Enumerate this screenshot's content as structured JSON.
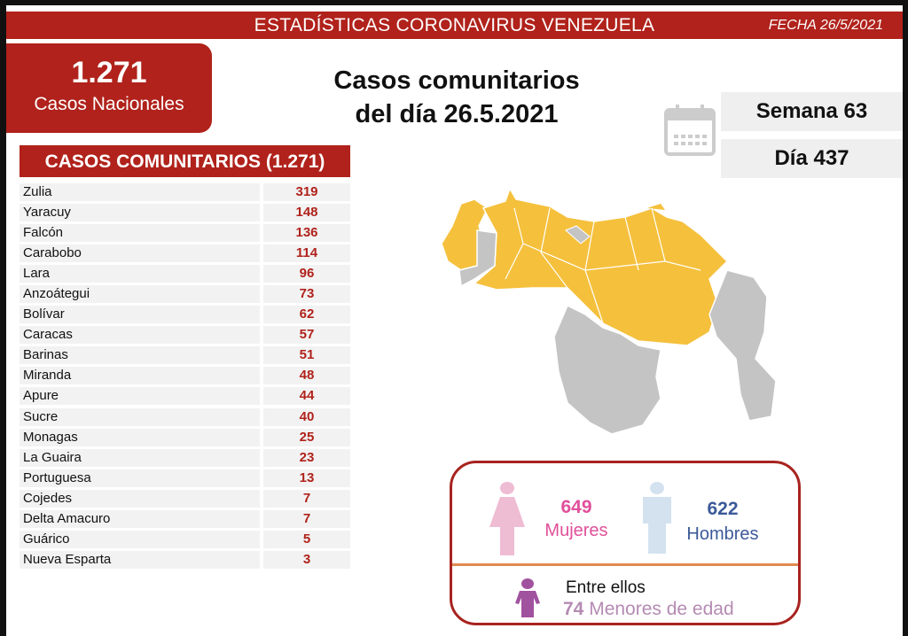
{
  "header": {
    "title": "ESTADÍSTICAS CORONAVIRUS VENEZUELA",
    "date": "FECHA 26/5/2021"
  },
  "national": {
    "count": "1.271",
    "label": "Casos Nacionales"
  },
  "main_title": {
    "line1": "Casos comunitarios",
    "line2": "del día 26.5.2021"
  },
  "week": "Semana 63",
  "day": "Día 437",
  "table": {
    "header": "CASOS COMUNITARIOS (1.271)",
    "rows": [
      {
        "state": "Zulia",
        "cases": "319"
      },
      {
        "state": "Yaracuy",
        "cases": "148"
      },
      {
        "state": "Falcón",
        "cases": "136"
      },
      {
        "state": "Carabobo",
        "cases": "114"
      },
      {
        "state": "Lara",
        "cases": "96"
      },
      {
        "state": "Anzoátegui",
        "cases": "73"
      },
      {
        "state": "Bolívar",
        "cases": "62"
      },
      {
        "state": "Caracas",
        "cases": "57"
      },
      {
        "state": "Barinas",
        "cases": "51"
      },
      {
        "state": "Miranda",
        "cases": "48"
      },
      {
        "state": "Apure",
        "cases": "44"
      },
      {
        "state": "Sucre",
        "cases": "40"
      },
      {
        "state": "Monagas",
        "cases": "25"
      },
      {
        "state": "La Guaira",
        "cases": "23"
      },
      {
        "state": "Portuguesa",
        "cases": "13"
      },
      {
        "state": "Cojedes",
        "cases": "7"
      },
      {
        "state": "Delta Amacuro",
        "cases": "7"
      },
      {
        "state": "Guárico",
        "cases": "5"
      },
      {
        "state": "Nueva Esparta",
        "cases": "3"
      }
    ]
  },
  "gender": {
    "women_count": "649",
    "women_label": "Mujeres",
    "men_count": "622",
    "men_label": "Hombres",
    "minors_intro": "Entre ellos",
    "minors_count": "74",
    "minors_label": "Menores de edad"
  },
  "colors": {
    "brand_red": "#b0221b",
    "map_yellow": "#f5c03c",
    "map_gray": "#c4c4c4",
    "women": "#e0509a",
    "men": "#3c5a99",
    "minors": "#a0529f"
  }
}
